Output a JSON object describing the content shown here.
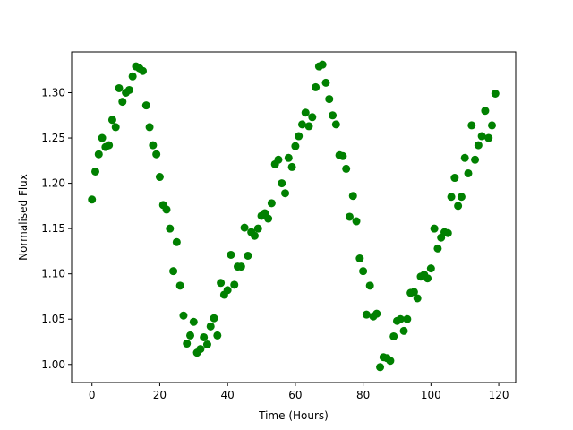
{
  "chart_data": {
    "type": "scatter",
    "title": "",
    "xlabel": "Time (Hours)",
    "ylabel": "Normalised Flux",
    "xlim": [
      -6,
      125
    ],
    "ylim": [
      0.98,
      1.345
    ],
    "xticks": [
      0,
      20,
      40,
      60,
      80,
      100,
      120
    ],
    "xtick_labels": [
      "0",
      "20",
      "40",
      "60",
      "80",
      "100",
      "120"
    ],
    "yticks": [
      1.0,
      1.05,
      1.1,
      1.15,
      1.2,
      1.25,
      1.3
    ],
    "ytick_labels": [
      "1.00",
      "1.05",
      "1.10",
      "1.15",
      "1.20",
      "1.25",
      "1.30"
    ],
    "grid": false,
    "marker_color": "#008000",
    "series": [
      {
        "x": [
          0,
          1,
          2,
          3,
          4,
          5,
          6,
          7,
          8,
          9,
          10,
          11,
          12,
          13,
          14,
          15,
          16,
          17,
          18,
          19,
          20,
          21,
          22,
          23,
          24,
          25,
          26,
          27,
          28,
          29,
          30,
          31,
          32,
          33,
          34,
          35,
          36,
          37,
          38,
          39,
          40,
          41,
          42,
          43,
          44,
          45,
          46,
          47,
          48,
          49,
          50,
          51,
          52,
          53,
          54,
          55,
          56,
          57,
          58,
          59,
          60,
          61,
          62,
          63,
          64,
          65,
          66,
          67,
          68,
          69,
          70,
          71,
          72,
          73,
          74,
          75,
          76,
          77,
          78,
          79,
          80,
          81,
          82,
          83,
          84,
          85,
          86,
          87,
          88,
          89,
          90,
          91,
          92,
          93,
          94,
          95,
          96,
          97,
          98,
          99,
          100,
          101,
          102,
          103,
          104,
          105,
          106,
          107,
          108,
          109,
          110,
          111,
          112,
          113,
          114,
          115,
          116,
          117,
          118,
          119
        ],
        "y": [
          1.182,
          1.213,
          1.232,
          1.25,
          1.24,
          1.242,
          1.27,
          1.262,
          1.305,
          1.29,
          1.3,
          1.303,
          1.318,
          1.329,
          1.327,
          1.324,
          1.286,
          1.262,
          1.242,
          1.232,
          1.207,
          1.176,
          1.171,
          1.15,
          1.103,
          1.135,
          1.087,
          1.054,
          1.023,
          1.032,
          1.047,
          1.013,
          1.017,
          1.03,
          1.022,
          1.042,
          1.051,
          1.032,
          1.09,
          1.077,
          1.082,
          1.121,
          1.088,
          1.108,
          1.108,
          1.151,
          1.12,
          1.146,
          1.142,
          1.15,
          1.164,
          1.167,
          1.161,
          1.178,
          1.221,
          1.226,
          1.2,
          1.189,
          1.228,
          1.218,
          1.241,
          1.252,
          1.265,
          1.278,
          1.263,
          1.273,
          1.306,
          1.329,
          1.331,
          1.311,
          1.293,
          1.275,
          1.265,
          1.231,
          1.23,
          1.216,
          1.163,
          1.186,
          1.158,
          1.117,
          1.103,
          1.055,
          1.087,
          1.053,
          1.056,
          0.997,
          1.008,
          1.007,
          1.004,
          1.031,
          1.048,
          1.05,
          1.037,
          1.05,
          1.079,
          1.08,
          1.073,
          1.097,
          1.099,
          1.095,
          1.106,
          1.15,
          1.128,
          1.14,
          1.146,
          1.145,
          1.185,
          1.206,
          1.175,
          1.185,
          1.228,
          1.211,
          1.264,
          1.226,
          1.242,
          1.252,
          1.28,
          1.25,
          1.264,
          1.299
        ]
      }
    ]
  }
}
